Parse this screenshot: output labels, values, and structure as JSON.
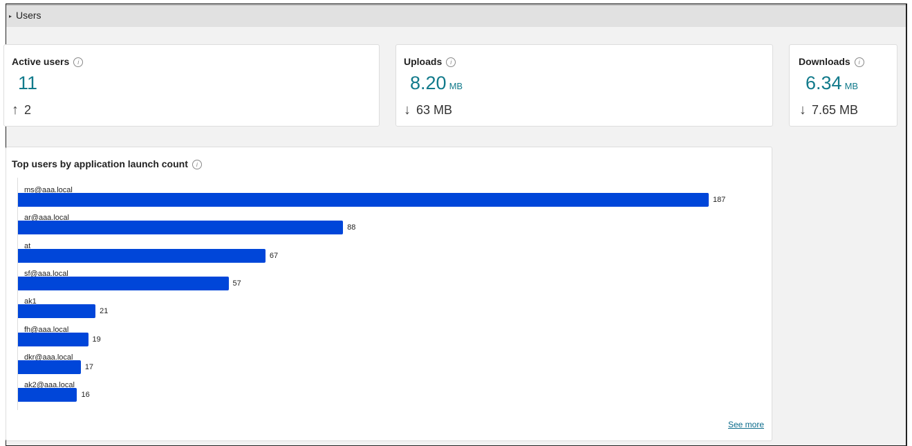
{
  "header": {
    "title": "Users"
  },
  "cards": [
    {
      "label": "Active users",
      "value": "11",
      "unit": "",
      "delta_direction": "up",
      "delta": "2"
    },
    {
      "label": "Uploads",
      "value": "8.20",
      "unit": "MB",
      "delta_direction": "down",
      "delta": "63 MB"
    },
    {
      "label": "Downloads",
      "value": "6.34",
      "unit": "MB",
      "delta_direction": "down",
      "delta": "7.65 MB"
    }
  ],
  "chart": {
    "see_more": "See more"
  },
  "chart_data": {
    "type": "bar",
    "orientation": "horizontal",
    "title": "Top users by application launch count",
    "categories": [
      "ms@aaa.local",
      "ar@aaa.local",
      "at",
      "sf@aaa.local",
      "ak1",
      "fh@aaa.local",
      "dkr@aaa.local",
      "ak2@aaa.local"
    ],
    "values": [
      187,
      88,
      67,
      57,
      21,
      19,
      17,
      16
    ],
    "bar_color": "#0046d9",
    "xlim": [
      0,
      187
    ],
    "grid": false
  },
  "colors": {
    "accent": "#117a8b",
    "bar": "#0046d9"
  }
}
